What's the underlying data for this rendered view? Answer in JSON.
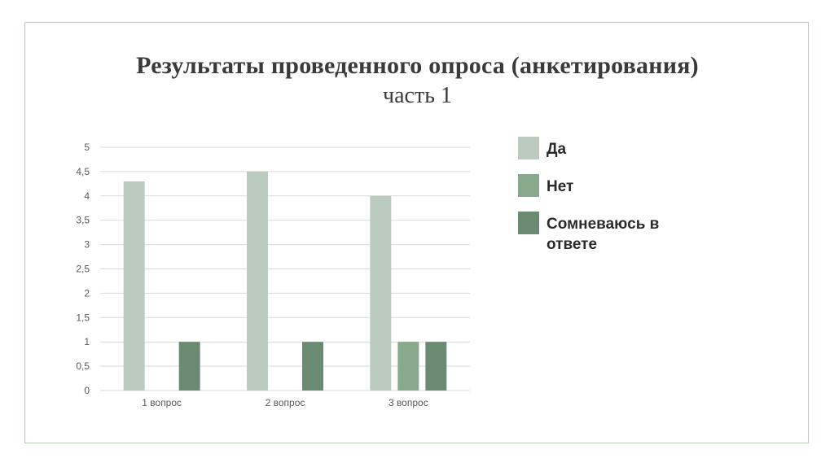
{
  "title": {
    "line1": "Результаты проведенного опроса (анкетирования)",
    "line2": "часть 1"
  },
  "chart_data": {
    "type": "bar",
    "categories": [
      "1 вопрос",
      "2 вопрос",
      "3 вопрос"
    ],
    "series": [
      {
        "name": "Да",
        "values": [
          4.3,
          4.5,
          4.0
        ],
        "color": "#bccbbf"
      },
      {
        "name": "Нет",
        "values": [
          0,
          0,
          1
        ],
        "color": "#89a98c"
      },
      {
        "name": "Сомневаюсь в ответе",
        "values": [
          1,
          1,
          1
        ],
        "color": "#6a8a72"
      }
    ],
    "yticks": [
      "0",
      "0,5",
      "1",
      "1,5",
      "2",
      "2,5",
      "3",
      "3,5",
      "4",
      "4,5",
      "5"
    ],
    "ylim": [
      0,
      5
    ],
    "grid": true,
    "legend_position": "right",
    "xlabel": "",
    "ylabel": ""
  },
  "colors": {
    "frame_border": "#b9c8b9",
    "grid": "#d9d9d9",
    "tick_text": "#595959"
  }
}
